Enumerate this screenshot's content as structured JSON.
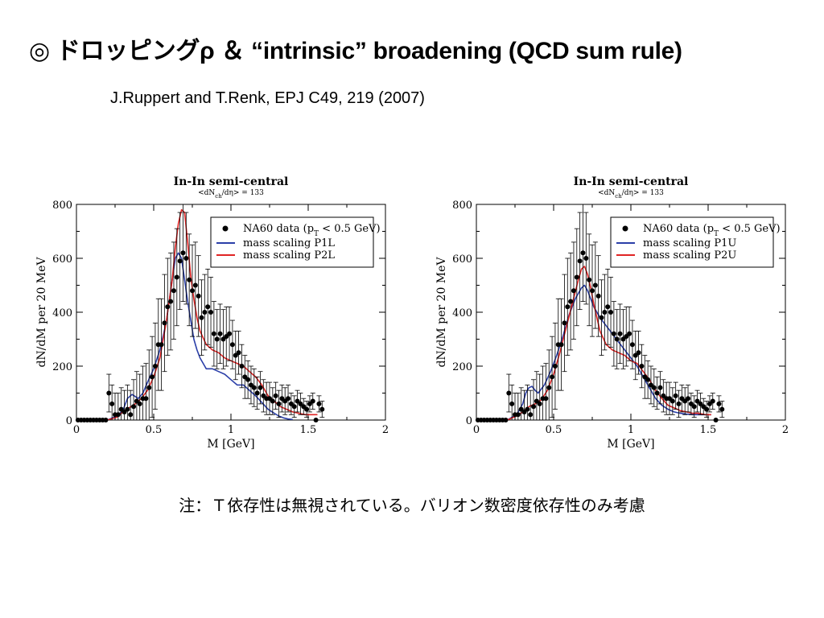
{
  "slide": {
    "title": "◎ ドロッピングρ ＆ “intrinsic” broadening (QCD sum rule)",
    "reference": "J.Ruppert and T.Renk, EPJ C49, 219 (2007)",
    "note": "注：Ｔ依存性は無視されている。バリオン数密度依存性のみ考慮"
  },
  "colors": {
    "data_marker": "#000000",
    "blue_line": "#2b3fa8",
    "red_line": "#e02424",
    "axis": "#000000"
  },
  "chart_data": [
    {
      "type": "line",
      "title": "In-In semi-central",
      "subtitle": "<dN_ch/dη> = 133",
      "xlabel": "M [GeV]",
      "ylabel": "dN/dM per 20 MeV",
      "xlim": [
        0,
        2
      ],
      "ylim": [
        0,
        800
      ],
      "xticks": [
        "0",
        "0.5",
        "1",
        "1.5",
        "2"
      ],
      "yticks": [
        "0",
        "200",
        "400",
        "600",
        "800"
      ],
      "grid": false,
      "legend_position": "top-right",
      "legend": {
        "data_pre": "NA60 data (p",
        "data_sub": "T",
        "data_post": " < 0.5 GeV)",
        "series": [
          "mass scaling P1L",
          "mass scaling P2L"
        ]
      },
      "data_points": {
        "name": "NA60 data (pT < 0.5 GeV)",
        "x": [
          0.01,
          0.03,
          0.05,
          0.07,
          0.09,
          0.11,
          0.13,
          0.15,
          0.17,
          0.19,
          0.21,
          0.23,
          0.25,
          0.27,
          0.29,
          0.31,
          0.33,
          0.35,
          0.37,
          0.39,
          0.41,
          0.43,
          0.45,
          0.47,
          0.49,
          0.51,
          0.53,
          0.55,
          0.57,
          0.59,
          0.61,
          0.63,
          0.65,
          0.67,
          0.69,
          0.71,
          0.73,
          0.75,
          0.77,
          0.79,
          0.81,
          0.83,
          0.85,
          0.87,
          0.89,
          0.91,
          0.93,
          0.95,
          0.97,
          0.99,
          1.01,
          1.03,
          1.05,
          1.07,
          1.09,
          1.11,
          1.13,
          1.15,
          1.17,
          1.19,
          1.21,
          1.23,
          1.25,
          1.27,
          1.29,
          1.31,
          1.33,
          1.35,
          1.37,
          1.39,
          1.41,
          1.43,
          1.45,
          1.47,
          1.49,
          1.51,
          1.53,
          1.55,
          1.57,
          1.59
        ],
        "y": [
          0,
          0,
          0,
          0,
          0,
          0,
          0,
          0,
          0,
          0,
          100,
          60,
          20,
          20,
          40,
          30,
          40,
          20,
          50,
          70,
          60,
          80,
          80,
          120,
          160,
          200,
          280,
          280,
          360,
          420,
          440,
          480,
          530,
          590,
          620,
          600,
          520,
          480,
          500,
          460,
          380,
          400,
          420,
          400,
          320,
          300,
          320,
          300,
          310,
          320,
          280,
          240,
          250,
          200,
          160,
          150,
          130,
          120,
          100,
          120,
          90,
          80,
          80,
          70,
          90,
          60,
          80,
          70,
          80,
          60,
          50,
          70,
          60,
          50,
          40,
          60,
          70,
          0,
          60,
          40
        ],
        "err": [
          0,
          0,
          0,
          0,
          0,
          0,
          0,
          0,
          0,
          0,
          70,
          70,
          80,
          80,
          80,
          80,
          90,
          90,
          100,
          110,
          110,
          120,
          130,
          140,
          150,
          160,
          170,
          170,
          180,
          180,
          180,
          180,
          180,
          180,
          180,
          170,
          170,
          170,
          160,
          150,
          140,
          140,
          140,
          130,
          120,
          110,
          110,
          110,
          110,
          100,
          90,
          90,
          80,
          80,
          80,
          70,
          70,
          70,
          60,
          60,
          60,
          60,
          60,
          50,
          50,
          50,
          50,
          50,
          50,
          40,
          40,
          40,
          40,
          30,
          30,
          30,
          30,
          0,
          30,
          30
        ]
      },
      "series": [
        {
          "name": "mass scaling P1L",
          "color": "#2b3fa8",
          "x": [
            0.2,
            0.26,
            0.3,
            0.33,
            0.36,
            0.4,
            0.43,
            0.46,
            0.5,
            0.54,
            0.58,
            0.6,
            0.62,
            0.64,
            0.66,
            0.68,
            0.7,
            0.72,
            0.74,
            0.76,
            0.78,
            0.8,
            0.84,
            0.88,
            0.92,
            0.96,
            1.0,
            1.04,
            1.08,
            1.12,
            1.16,
            1.2,
            1.24,
            1.28,
            1.31,
            1.34,
            1.37,
            1.4
          ],
          "y": [
            0,
            15,
            35,
            80,
            95,
            80,
            100,
            140,
            190,
            260,
            360,
            440,
            520,
            600,
            620,
            600,
            520,
            440,
            370,
            300,
            260,
            230,
            190,
            190,
            180,
            170,
            150,
            130,
            130,
            110,
            90,
            65,
            40,
            25,
            15,
            8,
            4,
            2
          ]
        },
        {
          "name": "mass scaling P2L",
          "color": "#e02424",
          "x": [
            0.2,
            0.26,
            0.3,
            0.34,
            0.38,
            0.42,
            0.46,
            0.5,
            0.54,
            0.58,
            0.62,
            0.64,
            0.66,
            0.68,
            0.7,
            0.72,
            0.74,
            0.76,
            0.78,
            0.8,
            0.84,
            0.88,
            0.92,
            0.96,
            1.0,
            1.04,
            1.08,
            1.12,
            1.16,
            1.2,
            1.24,
            1.28,
            1.32,
            1.36,
            1.4,
            1.44,
            1.48,
            1.52,
            1.56
          ],
          "y": [
            0,
            10,
            30,
            45,
            60,
            80,
            110,
            160,
            230,
            360,
            520,
            640,
            730,
            780,
            770,
            660,
            530,
            450,
            380,
            330,
            280,
            260,
            250,
            230,
            220,
            210,
            200,
            180,
            160,
            130,
            90,
            70,
            50,
            40,
            30,
            25,
            20,
            20,
            20
          ]
        }
      ]
    },
    {
      "type": "line",
      "title": "In-In semi-central",
      "subtitle": "<dN_ch/dη> = 133",
      "xlabel": "M [GeV]",
      "ylabel": "dN/dM per 20 MeV",
      "xlim": [
        0,
        2
      ],
      "ylim": [
        0,
        800
      ],
      "xticks": [
        "0",
        "0.5",
        "1",
        "1.5",
        "2"
      ],
      "yticks": [
        "0",
        "200",
        "400",
        "600",
        "800"
      ],
      "grid": false,
      "legend_position": "top-right",
      "legend": {
        "data_pre": "NA60 data (p",
        "data_sub": "T",
        "data_post": " < 0.5 GeV)",
        "series": [
          "mass scaling P1U",
          "mass scaling P2U"
        ]
      },
      "data_points": {
        "name": "NA60 data (pT < 0.5 GeV)",
        "x": [
          0.01,
          0.03,
          0.05,
          0.07,
          0.09,
          0.11,
          0.13,
          0.15,
          0.17,
          0.19,
          0.21,
          0.23,
          0.25,
          0.27,
          0.29,
          0.31,
          0.33,
          0.35,
          0.37,
          0.39,
          0.41,
          0.43,
          0.45,
          0.47,
          0.49,
          0.51,
          0.53,
          0.55,
          0.57,
          0.59,
          0.61,
          0.63,
          0.65,
          0.67,
          0.69,
          0.71,
          0.73,
          0.75,
          0.77,
          0.79,
          0.81,
          0.83,
          0.85,
          0.87,
          0.89,
          0.91,
          0.93,
          0.95,
          0.97,
          0.99,
          1.01,
          1.03,
          1.05,
          1.07,
          1.09,
          1.11,
          1.13,
          1.15,
          1.17,
          1.19,
          1.21,
          1.23,
          1.25,
          1.27,
          1.29,
          1.31,
          1.33,
          1.35,
          1.37,
          1.39,
          1.41,
          1.43,
          1.45,
          1.47,
          1.49,
          1.51,
          1.53,
          1.55,
          1.57,
          1.59
        ],
        "y": [
          0,
          0,
          0,
          0,
          0,
          0,
          0,
          0,
          0,
          0,
          100,
          60,
          20,
          20,
          40,
          30,
          40,
          20,
          50,
          70,
          60,
          80,
          80,
          120,
          160,
          200,
          280,
          280,
          360,
          420,
          440,
          480,
          530,
          590,
          620,
          600,
          520,
          480,
          500,
          460,
          380,
          400,
          420,
          400,
          320,
          300,
          320,
          300,
          310,
          320,
          280,
          240,
          250,
          200,
          160,
          150,
          130,
          120,
          100,
          120,
          90,
          80,
          80,
          70,
          90,
          60,
          80,
          70,
          80,
          60,
          50,
          70,
          60,
          50,
          40,
          60,
          70,
          0,
          60,
          40
        ],
        "err": [
          0,
          0,
          0,
          0,
          0,
          0,
          0,
          0,
          0,
          0,
          70,
          70,
          80,
          80,
          80,
          80,
          90,
          90,
          100,
          110,
          110,
          120,
          130,
          140,
          150,
          160,
          170,
          170,
          180,
          180,
          180,
          180,
          180,
          180,
          180,
          170,
          170,
          170,
          160,
          150,
          140,
          140,
          140,
          130,
          120,
          110,
          110,
          110,
          110,
          100,
          90,
          90,
          80,
          80,
          80,
          70,
          70,
          70,
          60,
          60,
          60,
          60,
          60,
          50,
          50,
          50,
          50,
          50,
          50,
          40,
          40,
          40,
          40,
          30,
          30,
          30,
          30,
          0,
          30,
          30
        ]
      },
      "series": [
        {
          "name": "mass scaling P1U",
          "color": "#2b3fa8",
          "x": [
            0.2,
            0.26,
            0.3,
            0.32,
            0.34,
            0.36,
            0.38,
            0.4,
            0.44,
            0.48,
            0.52,
            0.56,
            0.6,
            0.64,
            0.68,
            0.7,
            0.72,
            0.74,
            0.76,
            0.78,
            0.8,
            0.84,
            0.88,
            0.92,
            0.96,
            1.0,
            1.04,
            1.08,
            1.12,
            1.16,
            1.2,
            1.24,
            1.28,
            1.32,
            1.36,
            1.4,
            1.44,
            1.48,
            1.52
          ],
          "y": [
            0,
            20,
            60,
            100,
            120,
            125,
            110,
            100,
            130,
            180,
            240,
            310,
            390,
            450,
            490,
            500,
            480,
            450,
            420,
            400,
            380,
            350,
            320,
            290,
            260,
            230,
            200,
            160,
            120,
            80,
            55,
            40,
            30,
            25,
            22,
            20,
            20,
            20,
            20
          ]
        },
        {
          "name": "mass scaling P2U",
          "color": "#e02424",
          "x": [
            0.2,
            0.26,
            0.3,
            0.34,
            0.38,
            0.42,
            0.46,
            0.5,
            0.54,
            0.58,
            0.62,
            0.66,
            0.68,
            0.7,
            0.72,
            0.74,
            0.76,
            0.78,
            0.8,
            0.84,
            0.88,
            0.92,
            0.96,
            1.0,
            1.04,
            1.08,
            1.12,
            1.16,
            1.2,
            1.24,
            1.28,
            1.32,
            1.36,
            1.4,
            1.44,
            1.48,
            1.52
          ],
          "y": [
            0,
            15,
            30,
            50,
            60,
            75,
            110,
            170,
            250,
            340,
            430,
            520,
            560,
            570,
            540,
            490,
            430,
            380,
            330,
            280,
            260,
            250,
            240,
            220,
            210,
            180,
            150,
            110,
            80,
            55,
            45,
            35,
            30,
            25,
            25,
            20,
            20
          ]
        }
      ]
    }
  ]
}
